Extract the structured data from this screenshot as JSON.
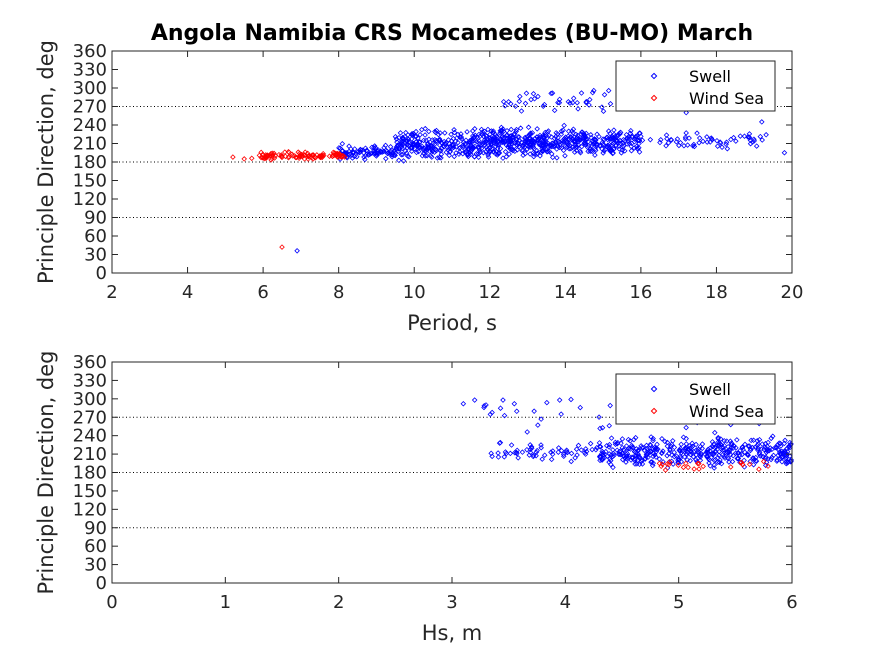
{
  "figure": {
    "title": "Angola Namibia CRS Mocamedes (BU-MO) March"
  },
  "colors": {
    "swell": "#0000ff",
    "wind_sea": "#ff0000",
    "refline": "#000000"
  },
  "chart_data": [
    {
      "type": "scatter",
      "xlabel": "Period, s",
      "ylabel": "Principle Direction, deg",
      "xlim": [
        2,
        20
      ],
      "ylim": [
        0,
        360
      ],
      "xticks": [
        2,
        4,
        6,
        8,
        10,
        12,
        14,
        16,
        18,
        20
      ],
      "yticks": [
        0,
        30,
        60,
        90,
        120,
        150,
        180,
        210,
        240,
        270,
        300,
        330,
        360
      ],
      "reference_lines_y": [
        90,
        180,
        270
      ],
      "legend": {
        "position": "top-right",
        "entries": [
          "Swell",
          "Wind Sea"
        ]
      },
      "series": [
        {
          "name": "Swell",
          "marker": "diamond",
          "color": "#0000ff",
          "clusters": [
            {
              "x": [
                8.0,
                9.5
              ],
              "y": [
                180,
                210
              ],
              "n": 90
            },
            {
              "x": [
                9.5,
                11.5
              ],
              "y": [
                180,
                235
              ],
              "n": 220
            },
            {
              "x": [
                11.5,
                14.0
              ],
              "y": [
                185,
                240
              ],
              "n": 320
            },
            {
              "x": [
                14.0,
                16.0
              ],
              "y": [
                190,
                235
              ],
              "n": 200
            },
            {
              "x": [
                16.0,
                19.5
              ],
              "y": [
                200,
                230
              ],
              "n": 60
            },
            {
              "x": [
                12.3,
                15.2
              ],
              "y": [
                255,
                300
              ],
              "n": 40
            }
          ],
          "points": [
            {
              "x": 6.9,
              "y": 36
            },
            {
              "x": 19.2,
              "y": 245
            },
            {
              "x": 19.8,
              "y": 195
            },
            {
              "x": 18.9,
              "y": 215
            },
            {
              "x": 17.2,
              "y": 260
            }
          ]
        },
        {
          "name": "Wind Sea",
          "marker": "diamond",
          "color": "#ff0000",
          "clusters": [
            {
              "x": [
                5.9,
                8.2
              ],
              "y": [
                183,
                197
              ],
              "n": 110
            }
          ],
          "points": [
            {
              "x": 5.2,
              "y": 188
            },
            {
              "x": 5.5,
              "y": 185
            },
            {
              "x": 5.7,
              "y": 186
            },
            {
              "x": 6.5,
              "y": 42
            }
          ]
        }
      ]
    },
    {
      "type": "scatter",
      "xlabel": "Hs, m",
      "ylabel": "Principle Direction, deg",
      "xlim": [
        0,
        6
      ],
      "ylim": [
        0,
        360
      ],
      "xticks": [
        0,
        1,
        2,
        3,
        4,
        5,
        6
      ],
      "yticks": [
        0,
        30,
        60,
        90,
        120,
        150,
        180,
        210,
        240,
        270,
        300,
        330,
        360
      ],
      "reference_lines_y": [
        90,
        180,
        270
      ],
      "legend": {
        "position": "top-right",
        "entries": [
          "Swell",
          "Wind Sea"
        ]
      },
      "series": [
        {
          "name": "Swell",
          "marker": "diamond",
          "color": "#0000ff",
          "clusters": [
            {
              "x": [
                3.3,
                4.3
              ],
              "y": [
                195,
                230
              ],
              "n": 60
            },
            {
              "x": [
                4.3,
                6.0
              ],
              "y": [
                185,
                240
              ],
              "n": 420
            },
            {
              "x": [
                3.2,
                6.0
              ],
              "y": [
                240,
                300
              ],
              "n": 35
            }
          ],
          "points": [
            {
              "x": 3.1,
              "y": 292
            },
            {
              "x": 3.2,
              "y": 298
            },
            {
              "x": 3.3,
              "y": 290
            },
            {
              "x": 3.45,
              "y": 298
            },
            {
              "x": 3.55,
              "y": 292
            },
            {
              "x": 3.95,
              "y": 298
            },
            {
              "x": 4.05,
              "y": 299
            }
          ]
        },
        {
          "name": "Wind Sea",
          "marker": "diamond",
          "color": "#ff0000",
          "clusters": [
            {
              "x": [
                4.8,
                5.8
              ],
              "y": [
                183,
                200
              ],
              "n": 25
            }
          ],
          "points": []
        }
      ]
    }
  ]
}
